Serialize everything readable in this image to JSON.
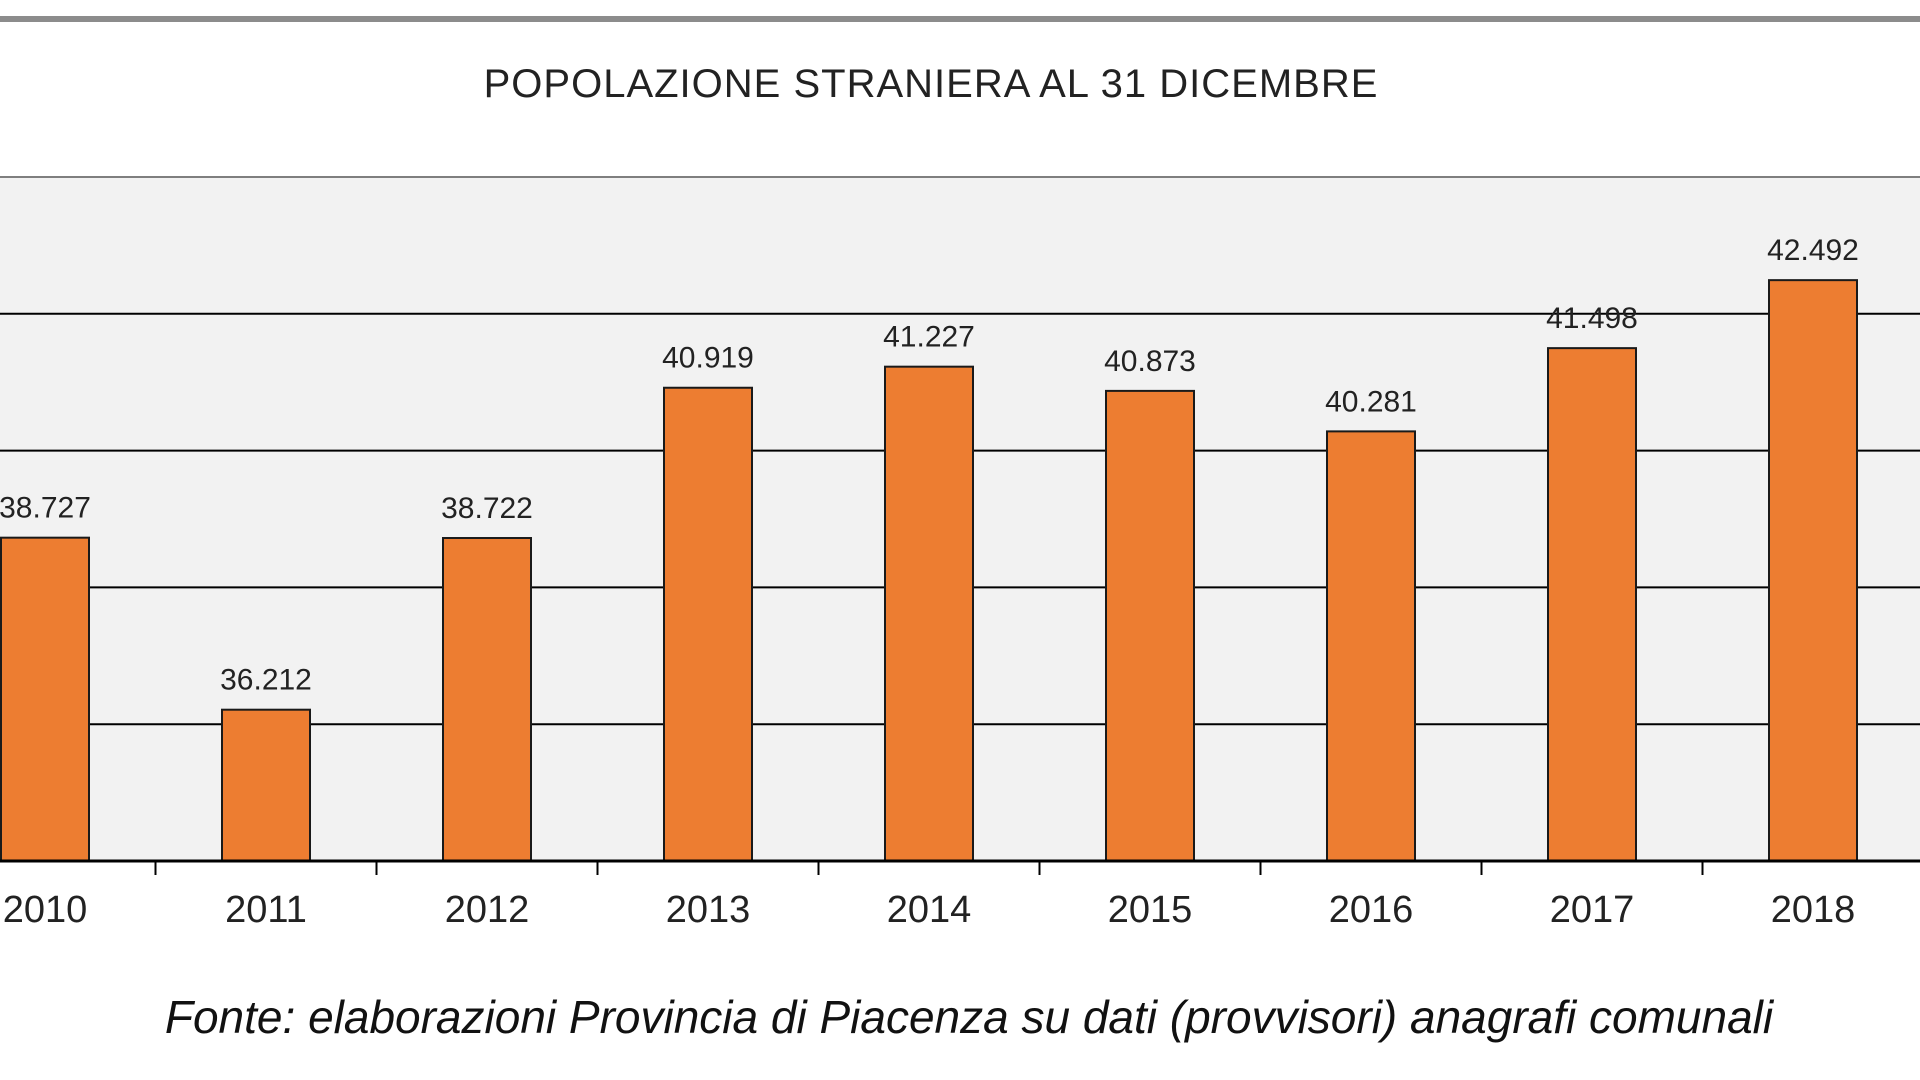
{
  "chart_data": {
    "type": "bar",
    "title": "POPOLAZIONE STRANIERA AL 31 DICEMBRE",
    "categories": [
      "2010",
      "2011",
      "2012",
      "2013",
      "2014",
      "2015",
      "2016",
      "2017",
      "2018"
    ],
    "values": [
      38727,
      36212,
      38722,
      40919,
      41227,
      40873,
      40281,
      41498,
      42492
    ],
    "value_labels": [
      "38.727",
      "36.212",
      "38.722",
      "40.919",
      "41.227",
      "40.873",
      "40.281",
      "41.498",
      "42.492"
    ],
    "xlabel": "",
    "ylabel": "",
    "ylim": [
      34000,
      44000
    ],
    "grid": true,
    "bar_color": "#ED7D31",
    "plot_background": "#F2F2F2",
    "legend": "none"
  },
  "footer": {
    "source": "Fonte: elaborazioni Provincia di Piacenza su dati (provvisori) anagrafi comunali"
  }
}
